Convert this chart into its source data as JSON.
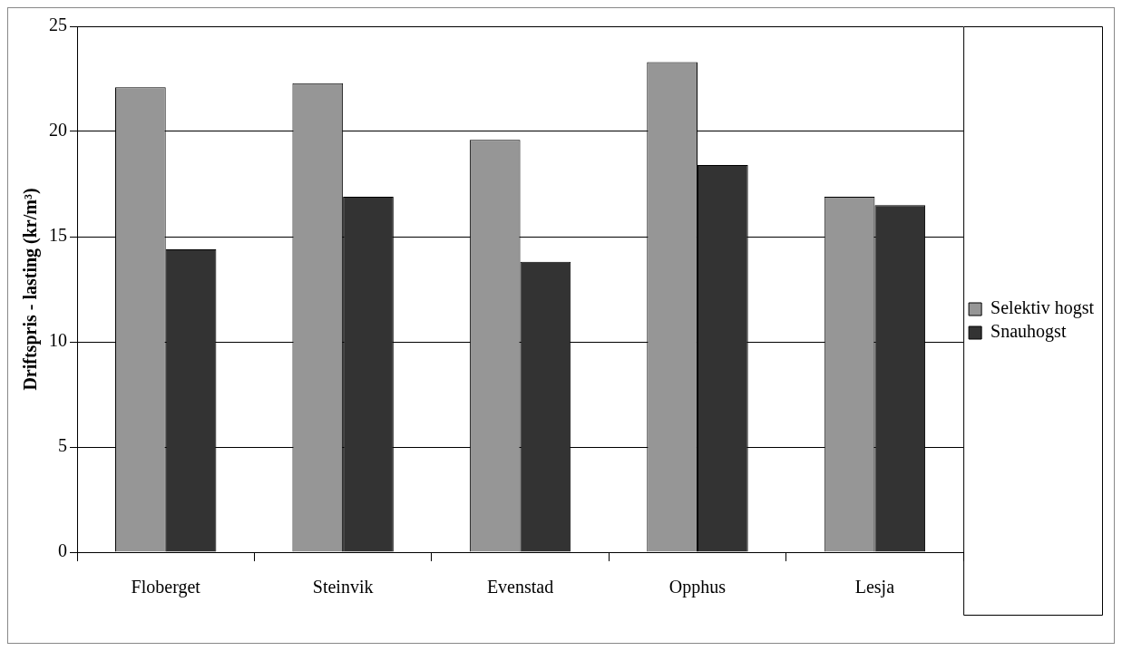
{
  "chart_data": {
    "type": "bar",
    "ylabel": "Driftspris - lasting (kr/m³)",
    "categories": [
      "Floberget",
      "Steinvik",
      "Evenstad",
      "Opphus",
      "Lesja"
    ],
    "series": [
      {
        "name": "Selektiv hogst",
        "color": "#969696",
        "values": [
          22.1,
          22.3,
          19.6,
          23.3,
          16.9
        ]
      },
      {
        "name": "Snauhogst",
        "color": "#333333",
        "values": [
          14.4,
          16.9,
          13.8,
          18.4,
          16.5
        ]
      }
    ],
    "ylim": [
      0,
      25
    ],
    "yticks": [
      0,
      5,
      10,
      15,
      20,
      25
    ],
    "grid": "y",
    "legend": "right"
  }
}
